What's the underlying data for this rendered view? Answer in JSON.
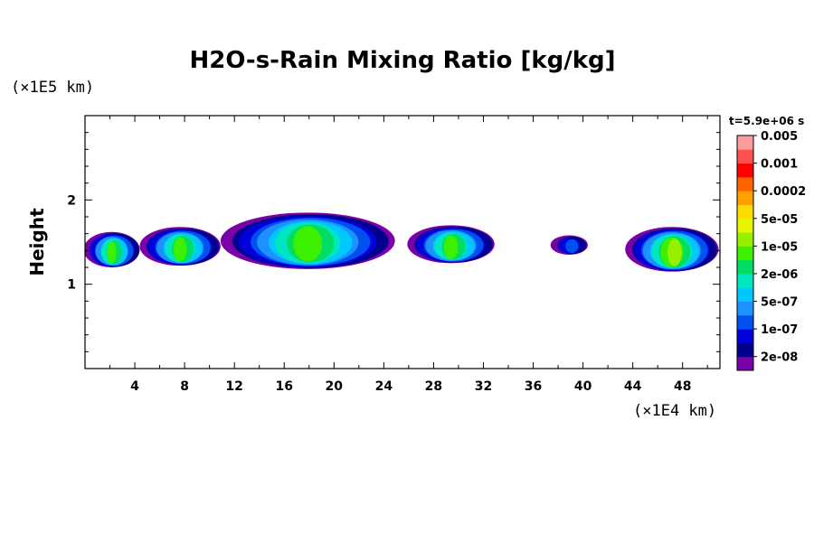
{
  "chart_data": {
    "type": "heatmap",
    "title": "H2O-s-Rain Mixing Ratio [kg/kg]",
    "ylabel": "Height",
    "xlabel": "",
    "x_unit": "(×1E4 km)",
    "y_unit": "(×1E5 km)",
    "time_label": "t=5.9e+06 s",
    "xlim": [
      0,
      51
    ],
    "ylim": [
      0,
      3
    ],
    "x_ticks": [
      4,
      8,
      12,
      16,
      20,
      24,
      28,
      32,
      36,
      40,
      44,
      48
    ],
    "y_ticks": [
      1,
      2
    ],
    "y_minor_step": 0.2,
    "x_minor_step": 2,
    "colorbar": {
      "colors": [
        "#7a00a8",
        "#00008c",
        "#0000dc",
        "#0050f0",
        "#1e90ff",
        "#00c8ff",
        "#00e6c0",
        "#00dc64",
        "#3cf000",
        "#96f000",
        "#e6f500",
        "#ffdc00",
        "#ffa000",
        "#ff6400",
        "#ff0000",
        "#ff5050",
        "#ff9c9c"
      ],
      "labels": [
        "2e-08",
        "1e-07",
        "5e-07",
        "2e-06",
        "1e-05",
        "5e-05",
        "0.0002",
        "0.001",
        "0.005"
      ],
      "label_positions": [
        1,
        3,
        5,
        7,
        9,
        11,
        13,
        15,
        17
      ]
    },
    "cells": [
      {
        "x": [
          0,
          4.5
        ],
        "y": [
          1.2,
          1.62
        ],
        "peak": 8
      },
      {
        "x": [
          4.5,
          11
        ],
        "y": [
          1.22,
          1.68
        ],
        "peak": 8
      },
      {
        "x": [
          11,
          25
        ],
        "y": [
          1.18,
          1.85
        ],
        "peak": 8
      },
      {
        "x": [
          26,
          33
        ],
        "y": [
          1.25,
          1.7
        ],
        "peak": 8
      },
      {
        "x": [
          37.5,
          40.5
        ],
        "y": [
          1.35,
          1.58
        ],
        "peak": 3
      },
      {
        "x": [
          43.5,
          51
        ],
        "y": [
          1.15,
          1.68
        ],
        "peak": 9
      }
    ]
  }
}
